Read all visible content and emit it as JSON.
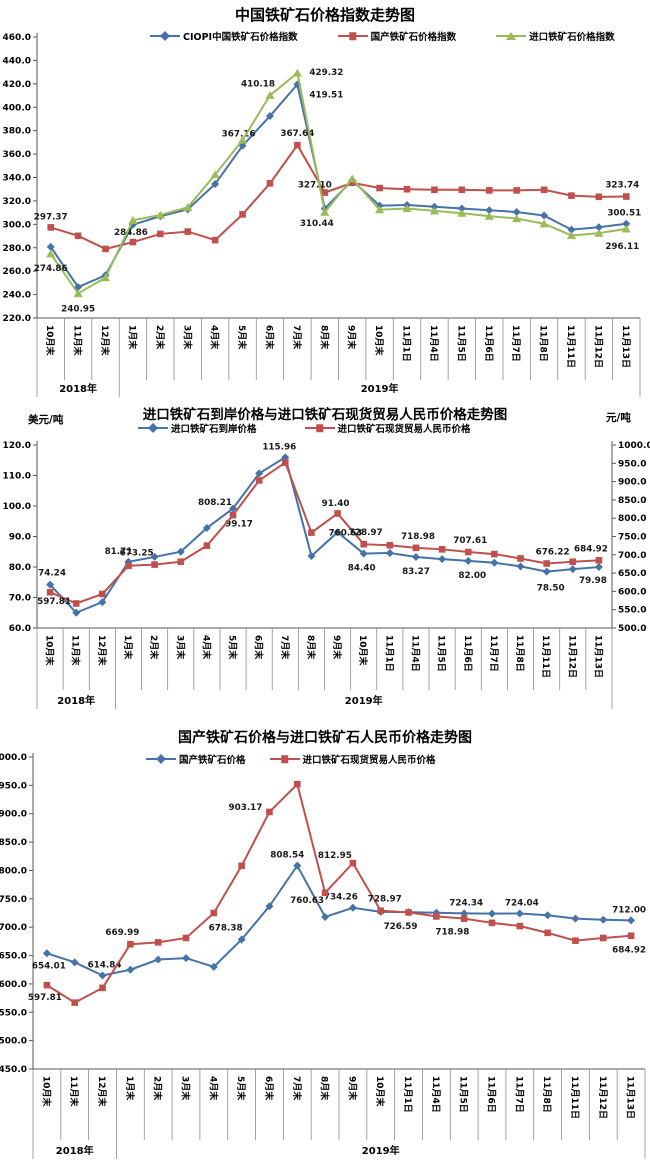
{
  "chart_data": [
    {
      "type": "line",
      "title": "中国铁矿石价格指数走势图",
      "y_axis": {
        "min": 220,
        "max": 460,
        "step": 20
      },
      "categories": [
        "10月末",
        "11月末",
        "12月末",
        "1月末",
        "2月末",
        "3月末",
        "4月末",
        "5月末",
        "6月末",
        "7月末",
        "8月末",
        "9月末",
        "10月末",
        "11月1日",
        "11月4日",
        "11月5日",
        "11月6日",
        "11月7日",
        "11月8日",
        "11月11日",
        "11月12日",
        "11月13日"
      ],
      "year_groups": [
        {
          "label": "2018年",
          "count": 3
        },
        {
          "label": "2019年",
          "count": 19
        }
      ],
      "series": [
        {
          "key": "ciopi",
          "name": "CIOPI中国铁矿石价格指数",
          "color": "#4572A7",
          "marker": "diamond",
          "axis": "y1",
          "values": [
            280.8,
            246.4,
            256.5,
            299.7,
            306.9,
            312.8,
            334.5,
            367.16,
            392.5,
            419.51,
            313.5,
            337.5,
            316.0,
            316.5,
            315.0,
            313.5,
            312.0,
            310.5,
            307.5,
            295.5,
            297.5,
            300.51
          ],
          "point_labels": [
            {
              "i": 7,
              "t": "367.16",
              "dx": -4,
              "dy": -9
            },
            {
              "i": 9,
              "t": "419.51",
              "dx": 29,
              "dy": 13
            },
            {
              "i": 21,
              "t": "300.51",
              "dx": -2,
              "dy": -8
            }
          ]
        },
        {
          "key": "domestic-index",
          "name": "国产铁矿石价格指数",
          "color": "#C0504D",
          "marker": "square",
          "axis": "y1",
          "values": [
            297.37,
            290.2,
            279.0,
            284.86,
            291.8,
            293.8,
            286.5,
            308.5,
            335.0,
            367.64,
            327.1,
            335.5,
            331.0,
            330.0,
            329.5,
            329.5,
            329.0,
            329.0,
            329.5,
            324.5,
            323.5,
            323.74
          ],
          "point_labels": [
            {
              "i": 0,
              "t": "297.37",
              "dx": 0,
              "dy": -8
            },
            {
              "i": 3,
              "t": "284.86",
              "dx": -2,
              "dy": -7
            },
            {
              "i": 9,
              "t": "367.64",
              "dx": 0,
              "dy": -9
            },
            {
              "i": 10,
              "t": "327.10",
              "dx": -10,
              "dy": -5
            },
            {
              "i": 21,
              "t": "323.74",
              "dx": -4,
              "dy": -9
            }
          ]
        },
        {
          "key": "import-index",
          "name": "进口铁矿石价格指数",
          "color": "#9BBB59",
          "marker": "triangle",
          "axis": "y1",
          "values": [
            274.86,
            240.95,
            254.5,
            303.5,
            308.0,
            314.5,
            342.5,
            372.0,
            410.18,
            429.32,
            310.44,
            339.0,
            312.5,
            313.5,
            311.5,
            309.5,
            307.0,
            305.0,
            300.5,
            290.5,
            292.5,
            296.11
          ],
          "point_labels": [
            {
              "i": 0,
              "t": "274.86",
              "dx": 0,
              "dy": 17
            },
            {
              "i": 1,
              "t": "240.95",
              "dx": 0,
              "dy": 18
            },
            {
              "i": 8,
              "t": "410.18",
              "dx": -12,
              "dy": -9
            },
            {
              "i": 9,
              "t": "429.32",
              "dx": 29,
              "dy": 2
            },
            {
              "i": 10,
              "t": "310.44",
              "dx": -8,
              "dy": 14
            },
            {
              "i": 21,
              "t": "296.11",
              "dx": -4,
              "dy": 20
            }
          ]
        }
      ]
    },
    {
      "type": "line",
      "title": "进口铁矿石到岸价格与进口铁矿石现货贸易人民币价格走势图",
      "y_axis": {
        "min": 60,
        "max": 120,
        "step": 10,
        "unit_label": "美元/吨"
      },
      "y2_axis": {
        "min": 500,
        "max": 1000,
        "step": 50,
        "unit_label": "元/吨"
      },
      "categories": [
        "10月末",
        "11月末",
        "12月末",
        "1月末",
        "2月末",
        "3月末",
        "4月末",
        "5月末",
        "6月末",
        "7月末",
        "8月末",
        "9月末",
        "10月末",
        "11月1日",
        "11月4日",
        "11月5日",
        "11月6日",
        "11月7日",
        "11月8日",
        "11月11日",
        "11月12日",
        "11月13日"
      ],
      "year_groups": [
        {
          "label": "2018年",
          "count": 3
        },
        {
          "label": "2019年",
          "count": 19
        }
      ],
      "series": [
        {
          "key": "import-cif-usd",
          "name": "进口铁矿石到岸价格",
          "color": "#4572A7",
          "marker": "diamond",
          "axis": "y1",
          "values": [
            74.24,
            65.0,
            68.5,
            81.71,
            83.3,
            85.0,
            92.8,
            99.17,
            110.7,
            115.96,
            83.6,
            91.4,
            84.4,
            84.6,
            83.27,
            82.6,
            82.0,
            81.4,
            80.2,
            78.5,
            79.3,
            79.98
          ],
          "point_labels": [
            {
              "i": 0,
              "t": "74.24",
              "dx": 2,
              "dy": -9
            },
            {
              "i": 3,
              "t": "81.71",
              "dx": -10,
              "dy": -8
            },
            {
              "i": 7,
              "t": "99.17",
              "dx": 6,
              "dy": 18
            },
            {
              "i": 9,
              "t": "115.96",
              "dx": -6,
              "dy": -8
            },
            {
              "i": 11,
              "t": "91.40",
              "dx": -2,
              "dy": -26
            },
            {
              "i": 12,
              "t": "84.40",
              "dx": -2,
              "dy": 17
            },
            {
              "i": 14,
              "t": "83.27",
              "dx": 0,
              "dy": 17
            },
            {
              "i": 16,
              "t": "82.00",
              "dx": 4,
              "dy": 17
            },
            {
              "i": 19,
              "t": "78.50",
              "dx": 4,
              "dy": 19
            },
            {
              "i": 21,
              "t": "79.98",
              "dx": -6,
              "dy": 16
            }
          ]
        },
        {
          "key": "import-spot-rmb",
          "name": "进口铁矿石现货贸易人民币价格",
          "color": "#C0504D",
          "marker": "square",
          "axis": "y2",
          "values": [
            597.81,
            567,
            593,
            669.99,
            673.25,
            681,
            725,
            808.21,
            903.17,
            952,
            760.63,
            812.95,
            728.97,
            726,
            718.98,
            715,
            707.61,
            702,
            690,
            676.22,
            681,
            684.92
          ],
          "point_labels": [
            {
              "i": 0,
              "t": "597.81",
              "dx": 4,
              "dy": 12
            },
            {
              "i": 4,
              "t": "673.25",
              "dx": -18,
              "dy": -9
            },
            {
              "i": 7,
              "t": "808.21",
              "dx": -18,
              "dy": -10
            },
            {
              "i": 10,
              "t": "760.63",
              "dx": 34,
              "dy": 3
            },
            {
              "i": 12,
              "t": "728.97",
              "dx": 2,
              "dy": -9
            },
            {
              "i": 14,
              "t": "718.98",
              "dx": 2,
              "dy": -9
            },
            {
              "i": 16,
              "t": "707.61",
              "dx": 2,
              "dy": -9
            },
            {
              "i": 19,
              "t": "676.22",
              "dx": 6,
              "dy": -9
            },
            {
              "i": 21,
              "t": "684.92",
              "dx": -8,
              "dy": -9
            }
          ]
        }
      ]
    },
    {
      "type": "line",
      "title": "国产铁矿石价格与进口铁矿石人民币价格走势图",
      "y_axis": {
        "min": 450,
        "max": 1000,
        "step": 50
      },
      "categories": [
        "10月末",
        "11月末",
        "12月末",
        "1月末",
        "2月末",
        "3月末",
        "4月末",
        "5月末",
        "6月末",
        "7月末",
        "8月末",
        "9月末",
        "10月末",
        "11月1日",
        "11月4日",
        "11月5日",
        "11月6日",
        "11月7日",
        "11月8日",
        "11月11日",
        "11月12日",
        "11月13日"
      ],
      "year_groups": [
        {
          "label": "2018年",
          "count": 3
        },
        {
          "label": "2019年",
          "count": 19
        }
      ],
      "series": [
        {
          "key": "domestic-price",
          "name": "国产铁矿石价格",
          "color": "#4572A7",
          "marker": "diamond",
          "axis": "y1",
          "values": [
            654.01,
            638,
            614.84,
            625,
            643,
            645.5,
            630,
            678.38,
            737,
            808.54,
            718,
            734.26,
            727,
            726.59,
            725.5,
            724.34,
            724,
            724.04,
            721,
            715,
            713,
            712.0
          ],
          "point_labels": [
            {
              "i": 0,
              "t": "654.01",
              "dx": 2,
              "dy": 15
            },
            {
              "i": 2,
              "t": "614.84",
              "dx": 2,
              "dy": -8
            },
            {
              "i": 7,
              "t": "678.38",
              "dx": -16,
              "dy": -9
            },
            {
              "i": 9,
              "t": "808.54",
              "dx": -10,
              "dy": -8
            },
            {
              "i": 11,
              "t": "734.26",
              "dx": -12,
              "dy": -8
            },
            {
              "i": 13,
              "t": "726.59",
              "dx": -8,
              "dy": 17
            },
            {
              "i": 15,
              "t": "724.34",
              "dx": 2,
              "dy": -8
            },
            {
              "i": 17,
              "t": "724.04",
              "dx": 2,
              "dy": -8
            },
            {
              "i": 21,
              "t": "712.00",
              "dx": -2,
              "dy": -8
            }
          ]
        },
        {
          "key": "import-spot-rmb",
          "name": "进口铁矿石现货贸易人民币价格",
          "color": "#C0504D",
          "marker": "square",
          "axis": "y1",
          "values": [
            597.81,
            567,
            593,
            669.99,
            673.25,
            681,
            725,
            808.21,
            903.17,
            952,
            760.63,
            812.95,
            728.97,
            726,
            718.98,
            715,
            707.61,
            702,
            690,
            676.22,
            681,
            684.92
          ],
          "point_labels": [
            {
              "i": 0,
              "t": "597.81",
              "dx": -2,
              "dy": 15
            },
            {
              "i": 3,
              "t": "669.99",
              "dx": -8,
              "dy": -9
            },
            {
              "i": 8,
              "t": "903.17",
              "dx": -24,
              "dy": -2
            },
            {
              "i": 10,
              "t": "760.63",
              "dx": -18,
              "dy": 10
            },
            {
              "i": 11,
              "t": "812.95",
              "dx": -18,
              "dy": -5
            },
            {
              "i": 12,
              "t": "728.97",
              "dx": 4,
              "dy": -9
            },
            {
              "i": 14,
              "t": "718.98",
              "dx": 16,
              "dy": 18
            },
            {
              "i": 21,
              "t": "684.92",
              "dx": -2,
              "dy": 17
            }
          ]
        }
      ]
    }
  ]
}
